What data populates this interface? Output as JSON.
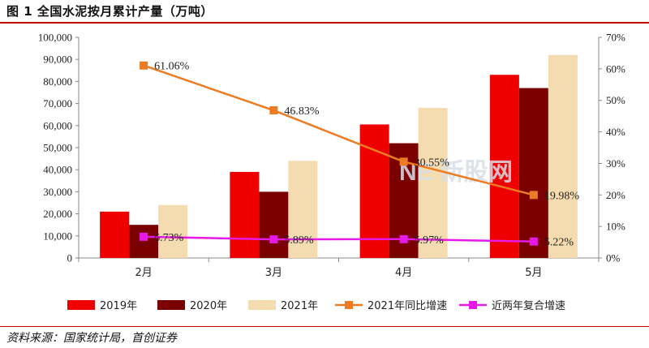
{
  "title": "图 1  全国水泥按月累计产量（万吨）",
  "source": "资料来源：国家统计局，首创证券",
  "watermark": "NE 新股网",
  "colors": {
    "rule": "#c00000",
    "s2019": "#ee0000",
    "s2020": "#7a0000",
    "s2021": "#f5dcb0",
    "yoy": "#ec7c23",
    "cagr": "#e619e6"
  },
  "chart_data": {
    "type": "bar",
    "categories": [
      "2月",
      "3月",
      "4月",
      "5月"
    ],
    "series": [
      {
        "name": "2019年",
        "type": "bar",
        "axis": "left",
        "values": [
          21000,
          39000,
          60500,
          83000
        ]
      },
      {
        "name": "2020年",
        "type": "bar",
        "axis": "left",
        "values": [
          15000,
          30000,
          52000,
          77000
        ]
      },
      {
        "name": "2021年",
        "type": "bar",
        "axis": "left",
        "values": [
          24000,
          44000,
          68000,
          92000
        ]
      },
      {
        "name": "2021年同比增速",
        "type": "line",
        "axis": "right",
        "values": [
          61.06,
          46.83,
          30.55,
          19.98
        ],
        "labels": [
          "61.06%",
          "46.83%",
          "30.55%",
          "19.98%"
        ]
      },
      {
        "name": "近两年复合增速",
        "type": "line",
        "axis": "right",
        "values": [
          6.73,
          5.89,
          5.97,
          5.22
        ],
        "labels": [
          "6.73%",
          "5.89%",
          "5.97%",
          "5.22%"
        ]
      }
    ],
    "ylim_left": [
      0,
      100000
    ],
    "yticks_left": [
      "0",
      "10,000",
      "20,000",
      "30,000",
      "40,000",
      "50,000",
      "60,000",
      "70,000",
      "80,000",
      "90,000",
      "100,000"
    ],
    "ylim_right": [
      0,
      70
    ],
    "yticks_right": [
      "0%",
      "10%",
      "20%",
      "30%",
      "40%",
      "50%",
      "60%",
      "70%"
    ],
    "grid": false,
    "legend_position": "bottom"
  }
}
